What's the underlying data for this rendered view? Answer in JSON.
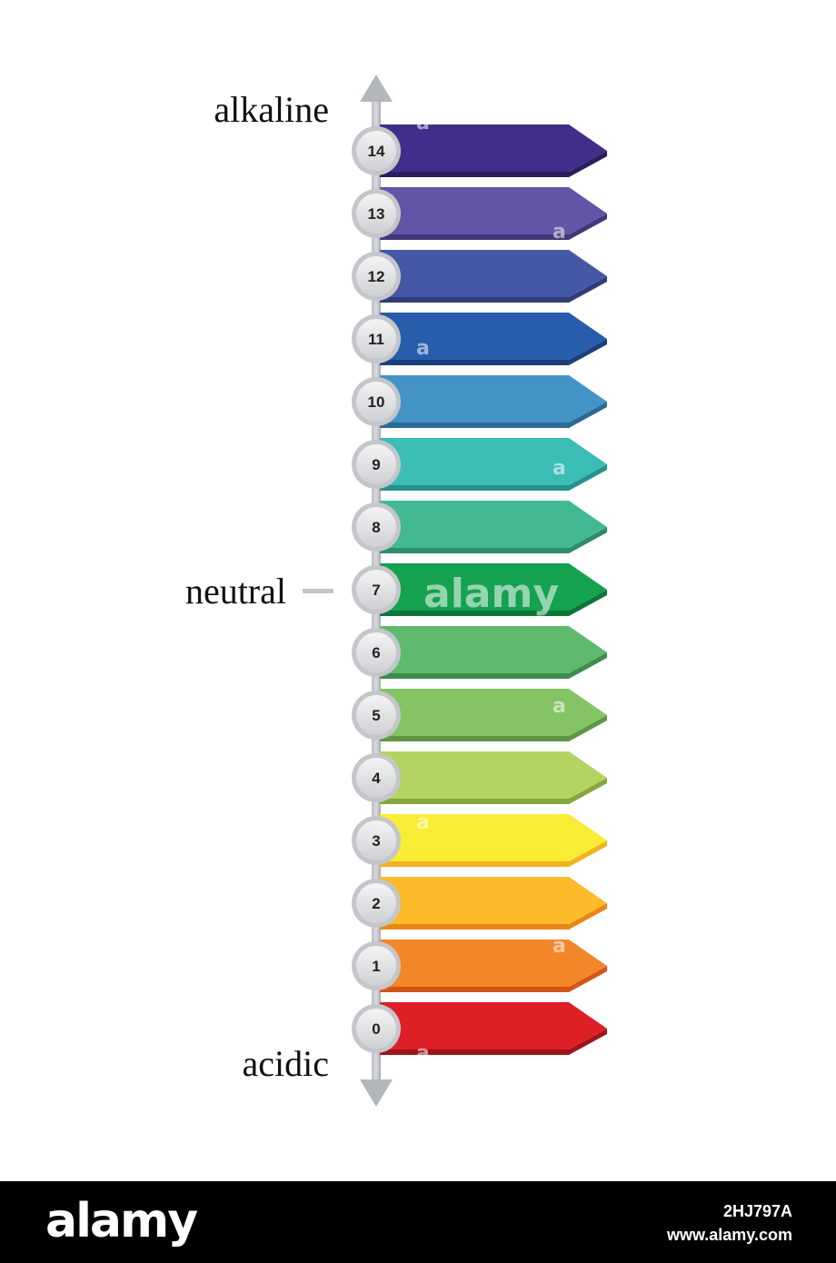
{
  "labels": {
    "top": "alkaline",
    "middle": "neutral",
    "bottom": "acidic"
  },
  "scale": [
    {
      "value": "14",
      "color": "#402E8A",
      "shade": "#2A1E5E"
    },
    {
      "value": "13",
      "color": "#6354A8",
      "shade": "#43377A"
    },
    {
      "value": "12",
      "color": "#4558A6",
      "shade": "#2E3C78"
    },
    {
      "value": "11",
      "color": "#285DAB",
      "shade": "#1A3F7A"
    },
    {
      "value": "10",
      "color": "#4493C7",
      "shade": "#2C6A96"
    },
    {
      "value": "9",
      "color": "#3BBDB6",
      "shade": "#27918B"
    },
    {
      "value": "8",
      "color": "#43B993",
      "shade": "#2D8C6C"
    },
    {
      "value": "7",
      "color": "#14A150",
      "shade": "#0C7538"
    },
    {
      "value": "6",
      "color": "#5DBA6C",
      "shade": "#408C4D"
    },
    {
      "value": "5",
      "color": "#84C464",
      "shade": "#5E9646"
    },
    {
      "value": "4",
      "color": "#B2D462",
      "shade": "#87A540"
    },
    {
      "value": "3",
      "color": "#F8EC34",
      "shade": "#F2B21E"
    },
    {
      "value": "2",
      "color": "#FDBB2C",
      "shade": "#E8861A"
    },
    {
      "value": "1",
      "color": "#F4862A",
      "shade": "#D45516"
    },
    {
      "value": "0",
      "color": "#DD1F26",
      "shade": "#9E1419"
    }
  ],
  "watermark": {
    "center": "alamy",
    "marks": [
      "a",
      "a",
      "a",
      "a",
      "a",
      "a",
      "a",
      "a"
    ]
  },
  "footer": {
    "logo": "alamy",
    "image_id": "2HJ797A",
    "site": "www.alamy.com"
  }
}
